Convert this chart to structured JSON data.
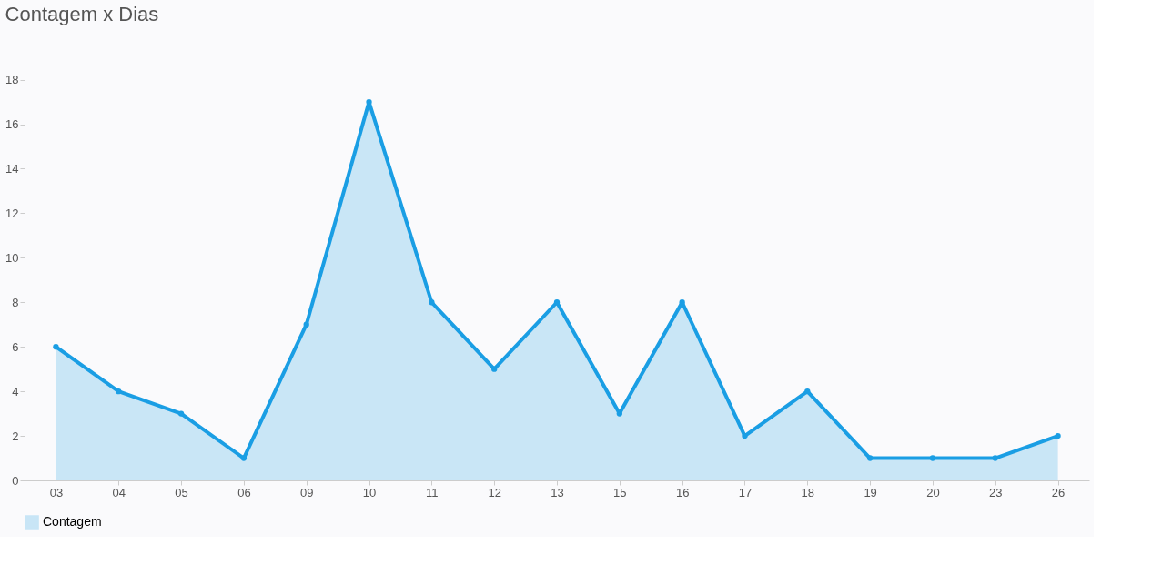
{
  "chart_data": {
    "type": "area",
    "title": "Contagem x Dias",
    "categories": [
      "03",
      "04",
      "05",
      "06",
      "09",
      "10",
      "11",
      "12",
      "13",
      "15",
      "16",
      "17",
      "18",
      "19",
      "20",
      "23",
      "26"
    ],
    "series": [
      {
        "name": "Contagem",
        "color": "#1a9ee4",
        "values": [
          6,
          4,
          3,
          1,
          7,
          17,
          8,
          5,
          8,
          3,
          8,
          2,
          4,
          1,
          1,
          1,
          2
        ]
      }
    ],
    "ylim": [
      0,
      18.8
    ],
    "yticks": [
      0,
      2,
      4,
      6,
      8,
      10,
      12,
      14,
      16,
      18
    ],
    "grid": false,
    "legend": "bottom",
    "marker": "circle",
    "line_style": "solid"
  }
}
